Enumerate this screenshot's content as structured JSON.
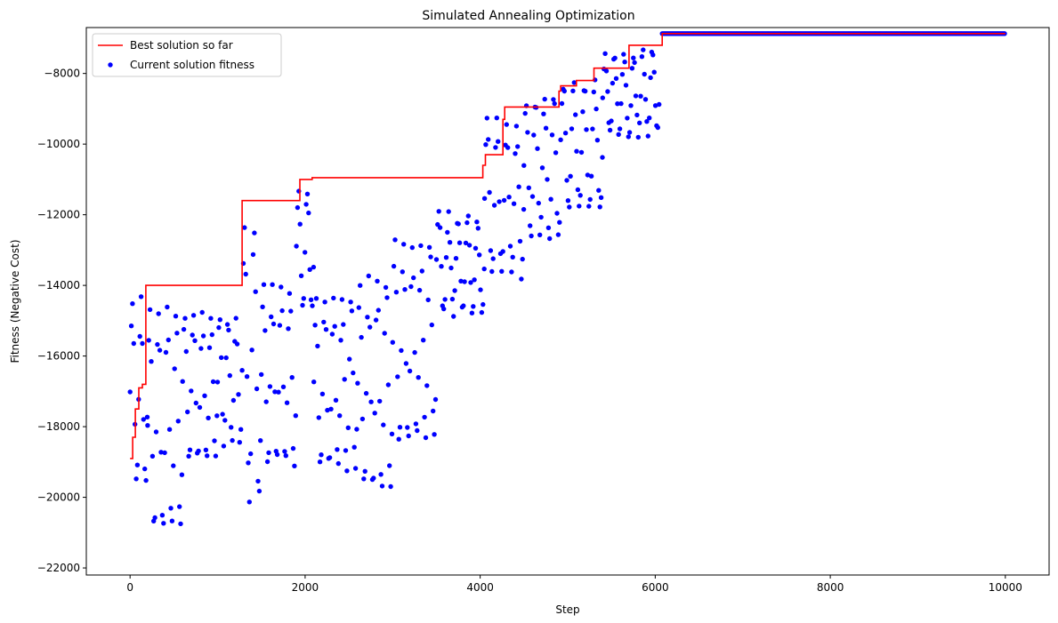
{
  "chart_data": {
    "type": "line+scatter",
    "title": "Simulated Annealing Optimization",
    "xlabel": "Step",
    "ylabel": "Fitness (Negative Cost)",
    "xlim": [
      -500,
      10500
    ],
    "ylim": [
      -22200,
      -6700
    ],
    "xticks": [
      0,
      2000,
      4000,
      6000,
      8000,
      10000
    ],
    "yticks": [
      -22000,
      -20000,
      -18000,
      -16000,
      -14000,
      -12000,
      -10000,
      -8000
    ],
    "legend_position": "upper-left",
    "colors": {
      "best": "#ff0000",
      "current": "#0000ff",
      "axes": "#000000"
    },
    "legend": [
      {
        "label": "Best solution so far",
        "kind": "line",
        "color": "#ff0000"
      },
      {
        "label": "Current solution fitness",
        "kind": "marker",
        "color": "#0000ff"
      }
    ],
    "best_series": {
      "name": "Best solution so far",
      "x": [
        0,
        30,
        60,
        100,
        140,
        180,
        1280,
        1940,
        2080,
        4030,
        4060,
        4260,
        4280,
        4900,
        4920,
        5100,
        5300,
        5700,
        6080,
        10000
      ],
      "y": [
        -18900,
        -18300,
        -17500,
        -16900,
        -16800,
        -14000,
        -11600,
        -11000,
        -10950,
        -10600,
        -10300,
        -9300,
        -8950,
        -8500,
        -8350,
        -8200,
        -7850,
        -7200,
        -6870,
        -6870
      ]
    },
    "current_series": {
      "name": "Current solution fitness",
      "segments": [
        {
          "x0": 0,
          "x1": 200,
          "low": -20100,
          "high": -14000
        },
        {
          "x0": 200,
          "x1": 600,
          "low": -21500,
          "high": -14100
        },
        {
          "x0": 600,
          "x1": 1000,
          "low": -19300,
          "high": -14400
        },
        {
          "x0": 1000,
          "x1": 1280,
          "low": -18800,
          "high": -14500
        },
        {
          "x0": 1280,
          "x1": 1500,
          "low": -20800,
          "high": -11700
        },
        {
          "x0": 1500,
          "x1": 1900,
          "low": -19500,
          "high": -13600
        },
        {
          "x0": 1900,
          "x1": 2100,
          "low": -15000,
          "high": -11000
        },
        {
          "x0": 2100,
          "x1": 2600,
          "low": -19600,
          "high": -14000
        },
        {
          "x0": 2600,
          "x1": 3000,
          "low": -20200,
          "high": -13300
        },
        {
          "x0": 3000,
          "x1": 3500,
          "low": -18900,
          "high": -12300
        },
        {
          "x0": 3500,
          "x1": 4050,
          "low": -15000,
          "high": -11800
        },
        {
          "x0": 4050,
          "x1": 4500,
          "low": -14100,
          "high": -9000
        },
        {
          "x0": 4500,
          "x1": 4920,
          "low": -13000,
          "high": -8400
        },
        {
          "x0": 4920,
          "x1": 5400,
          "low": -12100,
          "high": -8000
        },
        {
          "x0": 5400,
          "x1": 6050,
          "low": -9900,
          "high": -7200
        }
      ],
      "plateau": {
        "x0": 6080,
        "x1": 10000,
        "y": -6870
      }
    }
  }
}
